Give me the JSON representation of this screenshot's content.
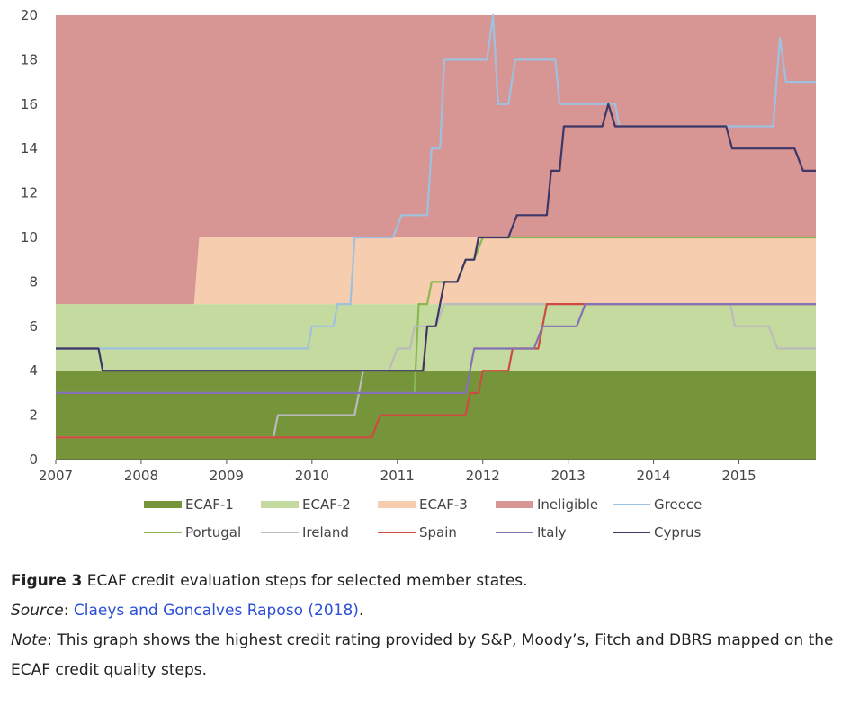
{
  "chart_data": {
    "type": "line",
    "title": "",
    "xlabel": "",
    "ylabel": "",
    "xlim": [
      2007,
      2015.9
    ],
    "ylim": [
      0,
      20
    ],
    "xticks": [
      2007,
      2008,
      2009,
      2010,
      2011,
      2012,
      2013,
      2014,
      2015
    ],
    "yticks": [
      0,
      2,
      4,
      6,
      8,
      10,
      12,
      14,
      16,
      18,
      20
    ],
    "legend_position": "bottom",
    "bands": [
      {
        "name": "ECAF-1",
        "color": "#76943a",
        "lower": [
          [
            2007,
            0
          ],
          [
            2015.9,
            0
          ]
        ],
        "upper": [
          [
            2007,
            4
          ],
          [
            2015.9,
            4
          ]
        ]
      },
      {
        "name": "ECAF-2",
        "color": "#c4da9f",
        "lower": [
          [
            2007,
            4
          ],
          [
            2015.9,
            4
          ]
        ],
        "upper": [
          [
            2007,
            7
          ],
          [
            2015.9,
            7
          ]
        ]
      },
      {
        "name": "ECAF-3",
        "color": "#f7cdb0",
        "lower": [
          [
            2007,
            7
          ],
          [
            2015.9,
            7
          ]
        ],
        "upper": [
          [
            2007,
            7
          ],
          [
            2008.62,
            7
          ],
          [
            2008.68,
            10
          ],
          [
            2015.9,
            10
          ]
        ]
      },
      {
        "name": "Ineligible",
        "color": "#d79594",
        "lower": [
          [
            2007,
            7
          ],
          [
            2008.62,
            7
          ],
          [
            2008.68,
            10
          ],
          [
            2015.9,
            10
          ]
        ],
        "upper": [
          [
            2007,
            20
          ],
          [
            2015.9,
            20
          ]
        ]
      }
    ],
    "series": [
      {
        "name": "Greece",
        "color": "#9fc1e0",
        "points": [
          [
            2007,
            5
          ],
          [
            2009.95,
            5
          ],
          [
            2010.0,
            6
          ],
          [
            2010.25,
            6
          ],
          [
            2010.3,
            7
          ],
          [
            2010.45,
            7
          ],
          [
            2010.5,
            10
          ],
          [
            2010.95,
            10
          ],
          [
            2011.05,
            11
          ],
          [
            2011.35,
            11
          ],
          [
            2011.4,
            14
          ],
          [
            2011.5,
            14
          ],
          [
            2011.55,
            18
          ],
          [
            2012.05,
            18
          ],
          [
            2012.12,
            20
          ],
          [
            2012.18,
            16
          ],
          [
            2012.3,
            16
          ],
          [
            2012.38,
            18
          ],
          [
            2012.85,
            18
          ],
          [
            2012.9,
            16
          ],
          [
            2013.55,
            16
          ],
          [
            2013.6,
            15
          ],
          [
            2014.85,
            15
          ],
          [
            2015.4,
            15
          ],
          [
            2015.48,
            19
          ],
          [
            2015.55,
            17
          ],
          [
            2015.9,
            17
          ]
        ]
      },
      {
        "name": "Portugal",
        "color": "#8ab852",
        "points": [
          [
            2007,
            3
          ],
          [
            2010.9,
            3
          ],
          [
            2011.2,
            3
          ],
          [
            2011.25,
            7
          ],
          [
            2011.35,
            7
          ],
          [
            2011.4,
            8
          ],
          [
            2011.6,
            8
          ],
          [
            2011.7,
            8
          ],
          [
            2011.8,
            9
          ],
          [
            2011.9,
            9
          ],
          [
            2012.0,
            10
          ],
          [
            2015.9,
            10
          ]
        ]
      },
      {
        "name": "Ireland",
        "color": "#bbbbbb",
        "points": [
          [
            2007,
            1
          ],
          [
            2009.55,
            1
          ],
          [
            2009.6,
            2
          ],
          [
            2010.5,
            2
          ],
          [
            2010.6,
            4
          ],
          [
            2010.9,
            4
          ],
          [
            2011.0,
            5
          ],
          [
            2011.15,
            5
          ],
          [
            2011.2,
            6
          ],
          [
            2011.45,
            6
          ],
          [
            2011.55,
            7
          ],
          [
            2014.9,
            7
          ],
          [
            2014.95,
            6
          ],
          [
            2015.35,
            6
          ],
          [
            2015.45,
            5
          ],
          [
            2015.9,
            5
          ]
        ]
      },
      {
        "name": "Spain",
        "color": "#cf4b42",
        "points": [
          [
            2007,
            1
          ],
          [
            2010.7,
            1
          ],
          [
            2010.8,
            2
          ],
          [
            2011.8,
            2
          ],
          [
            2011.85,
            3
          ],
          [
            2011.95,
            3
          ],
          [
            2012.0,
            4
          ],
          [
            2012.3,
            4
          ],
          [
            2012.35,
            5
          ],
          [
            2012.65,
            5
          ],
          [
            2012.75,
            7
          ],
          [
            2015.9,
            7
          ]
        ]
      },
      {
        "name": "Italy",
        "color": "#8572b3",
        "points": [
          [
            2007,
            3
          ],
          [
            2011.8,
            3
          ],
          [
            2011.9,
            5
          ],
          [
            2012.6,
            5
          ],
          [
            2012.7,
            6
          ],
          [
            2013.1,
            6
          ],
          [
            2013.2,
            7
          ],
          [
            2015.9,
            7
          ]
        ]
      },
      {
        "name": "Cyprus",
        "color": "#3c3766",
        "points": [
          [
            2007,
            5
          ],
          [
            2007.5,
            5
          ],
          [
            2007.55,
            4
          ],
          [
            2011.3,
            4
          ],
          [
            2011.35,
            6
          ],
          [
            2011.45,
            6
          ],
          [
            2011.55,
            8
          ],
          [
            2011.7,
            8
          ],
          [
            2011.8,
            9
          ],
          [
            2011.9,
            9
          ],
          [
            2011.95,
            10
          ],
          [
            2012.3,
            10
          ],
          [
            2012.4,
            11
          ],
          [
            2012.75,
            11
          ],
          [
            2012.8,
            13
          ],
          [
            2012.9,
            13
          ],
          [
            2012.95,
            15
          ],
          [
            2013.4,
            15
          ],
          [
            2013.47,
            16
          ],
          [
            2013.55,
            15
          ],
          [
            2014.85,
            15
          ],
          [
            2014.92,
            14
          ],
          [
            2015.65,
            14
          ],
          [
            2015.75,
            13
          ],
          [
            2015.9,
            13
          ]
        ]
      }
    ],
    "legend": [
      {
        "label": "ECAF-1",
        "color": "#76943a",
        "kind": "band"
      },
      {
        "label": "ECAF-2",
        "color": "#c4da9f",
        "kind": "band"
      },
      {
        "label": "ECAF-3",
        "color": "#f7cdb0",
        "kind": "band"
      },
      {
        "label": "Ineligible",
        "color": "#d79594",
        "kind": "band"
      },
      {
        "label": "Greece",
        "color": "#9fc1e0",
        "kind": "line"
      },
      {
        "label": "Portugal",
        "color": "#8ab852",
        "kind": "line"
      },
      {
        "label": "Ireland",
        "color": "#bbbbbb",
        "kind": "line"
      },
      {
        "label": "Spain",
        "color": "#cf4b42",
        "kind": "line"
      },
      {
        "label": "Italy",
        "color": "#8572b3",
        "kind": "line"
      },
      {
        "label": "Cyprus",
        "color": "#3c3766",
        "kind": "line"
      }
    ]
  },
  "caption": {
    "figure_label": "Figure 3",
    "figure_text": " ECAF credit evaluation steps for selected member states.",
    "source_label": "Source",
    "source_sep": ": ",
    "source_link": "Claeys and Goncalves Raposo (2018)",
    "source_end": ".",
    "note_label": "Note",
    "note_text": ": This graph shows the highest credit rating provided by S&P, Moody’s, Fitch and DBRS mapped on the ECAF credit quality steps."
  }
}
